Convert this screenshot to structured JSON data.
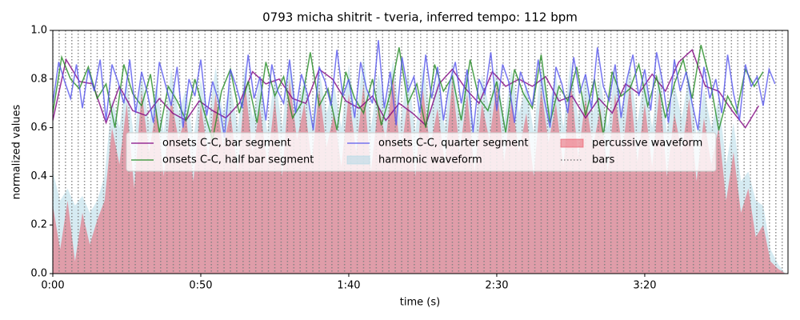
{
  "chart_data": {
    "type": "line",
    "title": "0793 micha shitrit - tveria, inferred tempo: 112 bpm",
    "xlabel": "time (s)",
    "ylabel": "normalized values",
    "xlim": [
      0,
      248.4
    ],
    "ylim": [
      0,
      1
    ],
    "xticks": [
      {
        "value": 0,
        "label": "0:00"
      },
      {
        "value": 50,
        "label": "0:50"
      },
      {
        "value": 100,
        "label": "1:40"
      },
      {
        "value": 150,
        "label": "2:30"
      },
      {
        "value": 200,
        "label": "3:20"
      }
    ],
    "yticks": [
      {
        "value": 0,
        "label": "0.0"
      },
      0.2,
      0.4,
      0.6,
      0.8,
      {
        "value": 1,
        "label": "1.0"
      }
    ],
    "legend_loc": "center",
    "series": [
      {
        "name": "onsets C-C, bar segment",
        "kind": "line",
        "color": "#800080",
        "x": [
          0,
          4.5,
          9,
          13.5,
          18,
          22.5,
          27,
          31.5,
          36,
          40.5,
          45,
          49.5,
          54,
          58.5,
          63,
          67.5,
          72,
          76.5,
          81,
          85.5,
          90,
          94.5,
          99,
          103.5,
          108,
          112.5,
          117,
          121.5,
          126,
          130.5,
          135,
          139.5,
          144,
          148.5,
          153,
          157.5,
          162,
          166.5,
          171,
          175.5,
          180,
          184.5,
          189,
          193.5,
          198,
          202.5,
          207,
          211.5,
          216,
          220.5,
          225,
          229.5,
          234,
          238.5
        ],
        "values": [
          0.63,
          0.88,
          0.79,
          0.78,
          0.62,
          0.77,
          0.67,
          0.65,
          0.72,
          0.66,
          0.63,
          0.71,
          0.67,
          0.64,
          0.7,
          0.83,
          0.78,
          0.8,
          0.72,
          0.7,
          0.84,
          0.8,
          0.71,
          0.68,
          0.73,
          0.63,
          0.7,
          0.66,
          0.61,
          0.78,
          0.84,
          0.76,
          0.7,
          0.83,
          0.77,
          0.8,
          0.77,
          0.81,
          0.71,
          0.73,
          0.64,
          0.72,
          0.66,
          0.78,
          0.74,
          0.82,
          0.75,
          0.87,
          0.92,
          0.77,
          0.75,
          0.67,
          0.6,
          0.69
        ]
      },
      {
        "name": "onsets C-C, half bar segment",
        "kind": "line",
        "color": "#228b22",
        "x": [
          0,
          3,
          6,
          9,
          12,
          15,
          18,
          21,
          24,
          27,
          30,
          33,
          36,
          39,
          42,
          45,
          48,
          51,
          54,
          57,
          60,
          63,
          66,
          69,
          72,
          75,
          78,
          81,
          84,
          87,
          90,
          93,
          96,
          99,
          102,
          105,
          108,
          111,
          114,
          117,
          120,
          123,
          126,
          129,
          132,
          135,
          138,
          141,
          144,
          147,
          150,
          153,
          156,
          159,
          162,
          165,
          168,
          171,
          174,
          177,
          180,
          183,
          186,
          189,
          192,
          195,
          198,
          201,
          204,
          207,
          210,
          213,
          216,
          219,
          222,
          225,
          228,
          231,
          234,
          237,
          240
        ],
        "values": [
          0.66,
          0.89,
          0.8,
          0.76,
          0.85,
          0.72,
          0.78,
          0.6,
          0.86,
          0.74,
          0.69,
          0.82,
          0.58,
          0.77,
          0.71,
          0.63,
          0.8,
          0.67,
          0.55,
          0.75,
          0.84,
          0.66,
          0.79,
          0.62,
          0.87,
          0.73,
          0.81,
          0.64,
          0.7,
          0.91,
          0.69,
          0.76,
          0.59,
          0.83,
          0.72,
          0.66,
          0.8,
          0.61,
          0.74,
          0.93,
          0.7,
          0.78,
          0.6,
          0.86,
          0.75,
          0.81,
          0.63,
          0.88,
          0.72,
          0.67,
          0.79,
          0.58,
          0.84,
          0.74,
          0.68,
          0.9,
          0.62,
          0.77,
          0.71,
          0.85,
          0.65,
          0.8,
          0.57,
          0.83,
          0.73,
          0.76,
          0.86,
          0.69,
          0.81,
          0.64,
          0.78,
          0.88,
          0.72,
          0.94,
          0.8,
          0.59,
          0.73,
          0.66,
          0.84,
          0.77,
          0.83
        ]
      },
      {
        "name": "onsets C-C, quarter segment",
        "kind": "line",
        "color": "#5555ee",
        "x": [
          0,
          2,
          4,
          6,
          8,
          10,
          12,
          14,
          16,
          18,
          20,
          22,
          24,
          26,
          28,
          30,
          32,
          34,
          36,
          38,
          40,
          42,
          44,
          46,
          48,
          50,
          52,
          54,
          56,
          58,
          60,
          62,
          64,
          66,
          68,
          70,
          72,
          74,
          76,
          78,
          80,
          82,
          84,
          86,
          88,
          90,
          92,
          94,
          96,
          98,
          100,
          102,
          104,
          106,
          108,
          110,
          112,
          114,
          116,
          118,
          120,
          122,
          124,
          126,
          128,
          130,
          132,
          134,
          136,
          138,
          140,
          142,
          144,
          146,
          148,
          150,
          152,
          154,
          156,
          158,
          160,
          162,
          164,
          166,
          168,
          170,
          172,
          174,
          176,
          178,
          180,
          182,
          184,
          186,
          188,
          190,
          192,
          194,
          196,
          198,
          200,
          202,
          204,
          206,
          208,
          210,
          212,
          214,
          216,
          218,
          220,
          222,
          224,
          226,
          228,
          230,
          232,
          234,
          236,
          238,
          240,
          242,
          244
        ],
        "values": [
          0.7,
          0.87,
          0.79,
          0.72,
          0.86,
          0.68,
          0.84,
          0.75,
          0.88,
          0.63,
          0.86,
          0.79,
          0.7,
          0.88,
          0.66,
          0.83,
          0.74,
          0.62,
          0.87,
          0.78,
          0.69,
          0.85,
          0.6,
          0.8,
          0.73,
          0.88,
          0.65,
          0.79,
          0.71,
          0.56,
          0.84,
          0.77,
          0.68,
          0.9,
          0.72,
          0.81,
          0.63,
          0.86,
          0.75,
          0.7,
          0.88,
          0.66,
          0.82,
          0.74,
          0.59,
          0.85,
          0.79,
          0.69,
          0.92,
          0.73,
          0.8,
          0.64,
          0.87,
          0.76,
          0.7,
          0.96,
          0.68,
          0.83,
          0.61,
          0.89,
          0.75,
          0.81,
          0.66,
          0.9,
          0.72,
          0.85,
          0.63,
          0.78,
          0.87,
          0.7,
          0.84,
          0.58,
          0.8,
          0.74,
          0.91,
          0.67,
          0.86,
          0.79,
          0.62,
          0.83,
          0.76,
          0.69,
          0.88,
          0.72,
          0.6,
          0.85,
          0.78,
          0.66,
          0.89,
          0.74,
          0.82,
          0.68,
          0.93,
          0.77,
          0.71,
          0.86,
          0.64,
          0.8,
          0.9,
          0.73,
          0.84,
          0.67,
          0.91,
          0.79,
          0.62,
          0.88,
          0.75,
          0.83,
          0.7,
          0.59,
          0.85,
          0.72,
          0.8,
          0.66,
          0.9,
          0.74,
          0.63,
          0.86,
          0.77,
          0.81,
          0.69,
          0.84,
          0.78
        ]
      },
      {
        "name": "harmonic waveform",
        "kind": "area",
        "color": "#add8e6",
        "x": [
          0,
          2.5,
          5,
          7.5,
          10,
          12.5,
          15,
          17.5,
          20,
          22.5,
          25,
          27.5,
          30,
          32.5,
          35,
          37.5,
          40,
          42.5,
          45,
          47.5,
          50,
          52.5,
          55,
          57.5,
          60,
          62.5,
          65,
          67.5,
          70,
          72.5,
          75,
          77.5,
          80,
          82.5,
          85,
          87.5,
          90,
          92.5,
          95,
          97.5,
          100,
          102.5,
          105,
          107.5,
          110,
          112.5,
          115,
          117.5,
          120,
          122.5,
          125,
          127.5,
          130,
          132.5,
          135,
          137.5,
          140,
          142.5,
          145,
          147.5,
          150,
          152.5,
          155,
          157.5,
          160,
          162.5,
          165,
          167.5,
          170,
          172.5,
          175,
          177.5,
          180,
          182.5,
          185,
          187.5,
          190,
          192.5,
          195,
          197.5,
          200,
          202.5,
          205,
          207.5,
          210,
          212.5,
          215,
          217.5,
          220,
          222.5,
          225,
          227.5,
          230,
          232.5,
          235,
          237.5,
          240,
          242.5,
          245,
          247.5
        ],
        "values": [
          0.42,
          0.3,
          0.35,
          0.28,
          0.32,
          0.25,
          0.3,
          0.4,
          0.72,
          0.6,
          0.8,
          0.55,
          0.82,
          0.62,
          0.78,
          0.58,
          0.84,
          0.66,
          0.76,
          0.55,
          0.8,
          0.62,
          0.85,
          0.66,
          0.78,
          0.6,
          0.86,
          0.64,
          0.8,
          0.58,
          0.82,
          0.6,
          0.88,
          0.68,
          0.8,
          0.62,
          0.84,
          0.66,
          0.78,
          0.6,
          0.86,
          0.64,
          0.9,
          0.6,
          0.82,
          0.68,
          0.88,
          0.62,
          0.84,
          0.58,
          0.86,
          0.66,
          0.8,
          0.6,
          0.88,
          0.64,
          0.84,
          0.58,
          0.82,
          0.68,
          0.86,
          0.62,
          0.84,
          0.66,
          0.78,
          0.58,
          0.86,
          0.68,
          0.82,
          0.6,
          0.88,
          0.64,
          0.82,
          0.66,
          0.8,
          0.6,
          0.84,
          0.66,
          0.86,
          0.62,
          0.82,
          0.6,
          0.84,
          0.58,
          0.78,
          0.64,
          0.82,
          0.56,
          0.76,
          0.6,
          0.72,
          0.45,
          0.62,
          0.38,
          0.42,
          0.3,
          0.28,
          0.1,
          0.04,
          0.0
        ]
      },
      {
        "name": "percussive waveform",
        "kind": "area",
        "color": "#e8505f",
        "x": [
          0,
          2.5,
          5,
          7.5,
          10,
          12.5,
          15,
          17.5,
          20,
          22.5,
          25,
          27.5,
          30,
          32.5,
          35,
          37.5,
          40,
          42.5,
          45,
          47.5,
          50,
          52.5,
          55,
          57.5,
          60,
          62.5,
          65,
          67.5,
          70,
          72.5,
          75,
          77.5,
          80,
          82.5,
          85,
          87.5,
          90,
          92.5,
          95,
          97.5,
          100,
          102.5,
          105,
          107.5,
          110,
          112.5,
          115,
          117.5,
          120,
          122.5,
          125,
          127.5,
          130,
          132.5,
          135,
          137.5,
          140,
          142.5,
          145,
          147.5,
          150,
          152.5,
          155,
          157.5,
          160,
          162.5,
          165,
          167.5,
          170,
          172.5,
          175,
          177.5,
          180,
          182.5,
          185,
          187.5,
          190,
          192.5,
          195,
          197.5,
          200,
          202.5,
          205,
          207.5,
          210,
          212.5,
          215,
          217.5,
          220,
          222.5,
          225,
          227.5,
          230,
          232.5,
          235,
          237.5,
          240,
          242.5,
          245,
          247.5
        ],
        "values": [
          0.28,
          0.1,
          0.3,
          0.05,
          0.25,
          0.12,
          0.22,
          0.3,
          0.6,
          0.45,
          0.7,
          0.35,
          0.75,
          0.5,
          0.68,
          0.4,
          0.72,
          0.55,
          0.65,
          0.38,
          0.7,
          0.48,
          0.74,
          0.52,
          0.66,
          0.42,
          0.78,
          0.5,
          0.68,
          0.45,
          0.72,
          0.4,
          0.8,
          0.55,
          0.7,
          0.46,
          0.76,
          0.52,
          0.66,
          0.44,
          0.74,
          0.5,
          0.78,
          0.42,
          0.7,
          0.55,
          0.82,
          0.48,
          0.72,
          0.4,
          0.76,
          0.52,
          0.68,
          0.45,
          0.8,
          0.5,
          0.74,
          0.42,
          0.7,
          0.55,
          0.78,
          0.46,
          0.72,
          0.5,
          0.66,
          0.4,
          0.76,
          0.54,
          0.7,
          0.44,
          0.8,
          0.48,
          0.72,
          0.52,
          0.68,
          0.42,
          0.74,
          0.5,
          0.78,
          0.46,
          0.7,
          0.44,
          0.76,
          0.4,
          0.66,
          0.5,
          0.72,
          0.38,
          0.64,
          0.45,
          0.6,
          0.3,
          0.5,
          0.25,
          0.35,
          0.15,
          0.2,
          0.05,
          0.02,
          0.0
        ]
      },
      {
        "name": "bars",
        "kind": "vlines",
        "color": "#808080",
        "x": [
          0,
          2.14,
          4.29,
          6.43,
          8.57,
          10.71,
          12.86,
          15,
          17.14,
          19.29,
          21.43,
          23.57,
          25.71,
          27.86,
          30,
          32.14,
          34.29,
          36.43,
          38.57,
          40.71,
          42.86,
          45,
          47.14,
          49.29,
          51.43,
          53.57,
          55.71,
          57.86,
          60,
          62.14,
          64.29,
          66.43,
          68.57,
          70.71,
          72.86,
          75,
          77.14,
          79.29,
          81.43,
          83.57,
          85.71,
          87.86,
          90,
          92.14,
          94.29,
          96.43,
          98.57,
          100.71,
          102.86,
          105,
          107.14,
          109.29,
          111.43,
          113.57,
          115.71,
          117.86,
          120,
          122.14,
          124.29,
          126.43,
          128.57,
          130.71,
          132.86,
          135,
          137.14,
          139.29,
          141.43,
          143.57,
          145.71,
          147.86,
          150,
          152.14,
          154.29,
          156.43,
          158.57,
          160.71,
          162.86,
          165,
          167.14,
          169.29,
          171.43,
          173.57,
          175.71,
          177.86,
          180,
          182.14,
          184.29,
          186.43,
          188.57,
          190.71,
          192.86,
          195,
          197.14,
          199.29,
          201.43,
          203.57,
          205.71,
          207.86,
          210,
          212.14,
          214.29,
          216.43,
          218.57,
          220.71,
          222.86,
          225,
          227.14,
          229.29,
          231.43,
          233.57,
          235.71,
          237.86,
          240,
          242.14,
          244.29,
          246.43
        ]
      }
    ]
  }
}
